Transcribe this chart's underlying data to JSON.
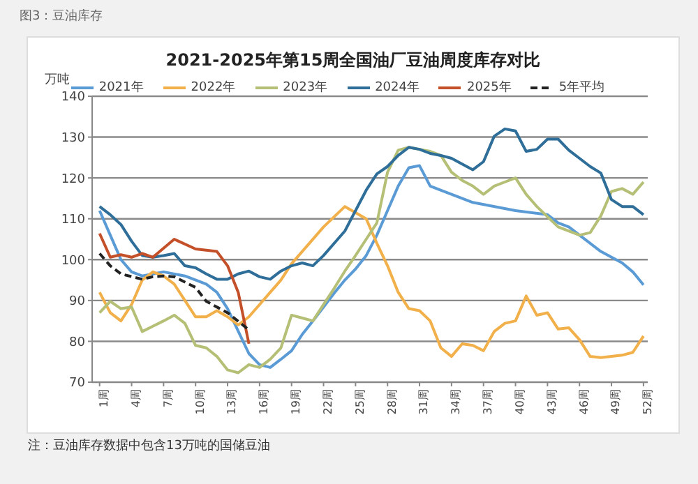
{
  "chart_data": {
    "type": "line",
    "title": "2021-2025年第15周全国油厂豆油周度库存对比",
    "ylabel": "万吨",
    "annotations": [
      "图3：豆油库存",
      "注：豆油库存数据中包含13万吨的国储豆油"
    ],
    "xlim": [
      0.3,
      52.4
    ],
    "xticks": [
      {
        "value": 1,
        "label": "1周"
      },
      {
        "value": 4,
        "label": "4周"
      },
      {
        "value": 7,
        "label": "7周"
      },
      {
        "value": 10,
        "label": "10周"
      },
      {
        "value": 13,
        "label": "13周"
      },
      {
        "value": 16,
        "label": "16周"
      },
      {
        "value": 19,
        "label": "19周"
      },
      {
        "value": 22,
        "label": "22周"
      },
      {
        "value": 25,
        "label": "25周"
      },
      {
        "value": 28,
        "label": "28周"
      },
      {
        "value": 31,
        "label": "31周"
      },
      {
        "value": 34,
        "label": "34周"
      },
      {
        "value": 37,
        "label": "37周"
      },
      {
        "value": 40,
        "label": "40周"
      },
      {
        "value": 43,
        "label": "43周"
      },
      {
        "value": 46,
        "label": "46周"
      },
      {
        "value": 49,
        "label": "49周"
      },
      {
        "value": 52,
        "label": "52周"
      }
    ],
    "ylim": [
      70,
      140
    ],
    "yticks": [
      70,
      80,
      90,
      100,
      110,
      120,
      130,
      140
    ],
    "grid": "y",
    "legend": "top",
    "marker": "none",
    "series": [
      {
        "name": "2021年",
        "color": "#5b9bd5",
        "x": [
          1,
          2,
          3,
          4,
          5,
          6,
          7,
          9,
          11,
          12,
          13,
          14,
          15,
          16,
          17,
          18,
          19,
          20,
          21,
          22,
          23,
          24,
          25,
          26,
          27,
          28,
          29,
          30,
          31,
          32,
          34,
          36,
          40,
          43,
          44,
          45,
          46,
          47,
          48,
          49,
          50,
          51,
          52
        ],
        "values": [
          112,
          106,
          100,
          97,
          96,
          96.5,
          97,
          96,
          94,
          92,
          88,
          82.5,
          77,
          74.3,
          73.6,
          75.6,
          77.7,
          81.7,
          85,
          88.4,
          91.8,
          95,
          97.7,
          101,
          106,
          112,
          118,
          122.5,
          123,
          118,
          116,
          114,
          112,
          111,
          109,
          108,
          106,
          104,
          102,
          100.6,
          99.2,
          97,
          93.8
        ]
      },
      {
        "name": "2022年",
        "color": "#f2b04a",
        "x": [
          1,
          2,
          3,
          4,
          5,
          6,
          7,
          8,
          9,
          10,
          11,
          12,
          13,
          14,
          15,
          16,
          17,
          18,
          19,
          20,
          22,
          24,
          26,
          27,
          28,
          29,
          30,
          31,
          32,
          33,
          34,
          35,
          36,
          37,
          38,
          39,
          40,
          41,
          42,
          43,
          44,
          45,
          46,
          47,
          48,
          49,
          50,
          51,
          52
        ],
        "values": [
          92,
          87,
          85,
          89,
          95,
          97,
          96,
          94,
          90,
          86,
          86,
          87.5,
          86,
          84,
          86,
          89,
          92,
          95,
          99,
          102,
          108,
          113,
          110,
          104,
          98.5,
          92,
          88,
          87.5,
          85,
          78.4,
          76.3,
          79.4,
          79,
          77.7,
          82.4,
          84.4,
          85,
          91.1,
          86.4,
          87,
          83,
          83.3,
          80.4,
          76.3,
          76,
          76.3,
          76.6,
          77.3,
          81.3
        ]
      },
      {
        "name": "2023年",
        "color": "#b5bf76",
        "x": [
          1,
          2,
          3,
          4,
          5,
          6,
          7,
          8,
          9,
          10,
          11,
          12,
          13,
          14,
          15,
          16,
          17,
          18,
          19,
          20,
          21,
          22,
          23,
          24,
          25,
          26,
          27,
          28,
          29,
          30,
          31,
          32,
          33,
          34,
          35,
          36,
          37,
          38,
          39,
          40,
          41,
          42,
          44,
          46,
          47,
          48,
          49,
          50,
          51,
          52
        ],
        "values": [
          87,
          89.8,
          88,
          88.4,
          82.4,
          83.7,
          85,
          86.4,
          84.4,
          79,
          78.4,
          76.3,
          73,
          72.3,
          74.3,
          73.6,
          75.6,
          78.4,
          86.4,
          85.7,
          85,
          89,
          93,
          97.2,
          101,
          105,
          109,
          121.4,
          126.8,
          127.5,
          127,
          126.5,
          125.5,
          121.4,
          119.4,
          118,
          116,
          118,
          119,
          120,
          116,
          113,
          108,
          106,
          106.6,
          110.7,
          116.7,
          117.4,
          116,
          119
        ]
      },
      {
        "name": "2024年",
        "color": "#2e6e99",
        "x": [
          1,
          2,
          3,
          4,
          5,
          6,
          7,
          8,
          9,
          10,
          11,
          12,
          13,
          14,
          15,
          16,
          17,
          18,
          19,
          20,
          21,
          22,
          24,
          25,
          26,
          27,
          28,
          29,
          30,
          31,
          32,
          33,
          34,
          35,
          36,
          37,
          38,
          39,
          40,
          41,
          42,
          43,
          44,
          45,
          46,
          47,
          48,
          49,
          50,
          51,
          52
        ],
        "values": [
          113,
          111,
          108.6,
          104.5,
          101,
          100.6,
          101,
          101.5,
          98.5,
          98,
          96.5,
          95.2,
          95.2,
          96.5,
          97.2,
          95.8,
          95.2,
          97.2,
          98.5,
          99.2,
          98.5,
          101,
          107,
          112,
          117,
          121,
          122.8,
          125.5,
          127.5,
          127,
          126,
          125.5,
          124.8,
          123.4,
          122,
          124,
          130.2,
          132,
          131.5,
          126.5,
          127,
          129.5,
          129.5,
          126.8,
          124.8,
          122.8,
          121.2,
          114.7,
          113,
          113,
          111
        ]
      },
      {
        "name": "2025年",
        "color": "#c4502a",
        "x": [
          1,
          2,
          3,
          4,
          5,
          6,
          8,
          10,
          12,
          13,
          14,
          15
        ],
        "values": [
          106.4,
          100.6,
          101.2,
          100.6,
          101.5,
          100.6,
          105,
          102.6,
          102,
          98.5,
          92,
          79.4
        ]
      },
      {
        "name": "5年平均",
        "color": "#222222",
        "line_style": "dashed",
        "x": [
          1,
          2,
          3,
          5,
          6,
          7,
          8,
          10,
          11,
          13,
          15
        ],
        "values": [
          101.5,
          98.5,
          96.5,
          95.2,
          95.8,
          96,
          95.8,
          93.2,
          89.8,
          87,
          82.8
        ]
      }
    ]
  }
}
